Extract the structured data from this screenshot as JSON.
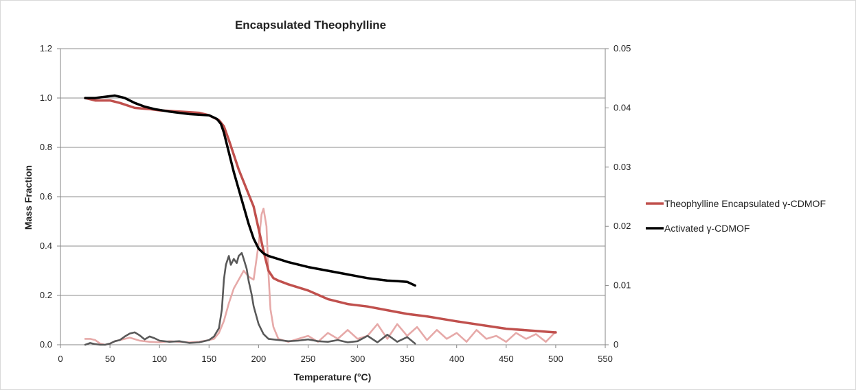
{
  "chart_data": {
    "type": "line",
    "title": "Encapsulated Theophylline",
    "xlabel": "Temperature (°C)",
    "ylabel": "Mass Fraction",
    "y2label": "",
    "xlim": [
      0,
      550
    ],
    "ylim": [
      0,
      1.2
    ],
    "y2lim": [
      0,
      0.05
    ],
    "x_ticks": [
      "0",
      "50",
      "100",
      "150",
      "200",
      "250",
      "300",
      "350",
      "400",
      "450",
      "500",
      "550"
    ],
    "y_ticks": [
      "0.0",
      "0.2",
      "0.4",
      "0.6",
      "0.8",
      "1.0",
      "1.2"
    ],
    "y2_ticks": [
      "0",
      "0.01",
      "0.02",
      "0.03",
      "0.04",
      "0.05"
    ],
    "grid": "horizontal",
    "legend_position": "right",
    "series": [
      {
        "name": "Theophylline Encapsulated γ-CDMOF",
        "axis": "left",
        "color": "#c0504d",
        "x": [
          25,
          35,
          50,
          60,
          75,
          90,
          100,
          120,
          140,
          150,
          160,
          165,
          170,
          175,
          180,
          185,
          190,
          195,
          200,
          205,
          210,
          215,
          220,
          230,
          250,
          270,
          290,
          310,
          330,
          350,
          370,
          400,
          450,
          500
        ],
        "y": [
          1.0,
          0.99,
          0.99,
          0.98,
          0.96,
          0.955,
          0.95,
          0.945,
          0.94,
          0.93,
          0.91,
          0.885,
          0.83,
          0.77,
          0.71,
          0.66,
          0.61,
          0.56,
          0.47,
          0.38,
          0.3,
          0.27,
          0.26,
          0.245,
          0.22,
          0.185,
          0.165,
          0.155,
          0.14,
          0.125,
          0.115,
          0.095,
          0.065,
          0.05
        ]
      },
      {
        "name": "Activated γ-CDMOF",
        "axis": "left",
        "color": "#000000",
        "x": [
          25,
          35,
          45,
          55,
          65,
          75,
          85,
          95,
          110,
          130,
          150,
          158,
          162,
          165,
          170,
          175,
          180,
          185,
          190,
          195,
          200,
          205,
          210,
          230,
          250,
          270,
          290,
          310,
          330,
          340,
          350,
          358
        ],
        "y": [
          1.0,
          1.0,
          1.005,
          1.01,
          1.0,
          0.98,
          0.965,
          0.955,
          0.945,
          0.935,
          0.93,
          0.915,
          0.895,
          0.86,
          0.78,
          0.7,
          0.63,
          0.56,
          0.49,
          0.43,
          0.39,
          0.37,
          0.36,
          0.335,
          0.315,
          0.3,
          0.285,
          0.27,
          0.26,
          0.258,
          0.255,
          0.24
        ]
      },
      {
        "name": "",
        "axis": "right",
        "color": "#e6a9a8",
        "x": [
          25,
          30,
          35,
          40,
          45,
          50,
          55,
          60,
          70,
          80,
          90,
          100,
          110,
          120,
          130,
          140,
          150,
          155,
          160,
          165,
          170,
          175,
          180,
          185,
          190,
          195,
          200,
          203,
          205,
          208,
          210,
          212,
          215,
          220,
          230,
          240,
          250,
          260,
          270,
          280,
          290,
          300,
          310,
          320,
          330,
          340,
          350,
          360,
          370,
          380,
          390,
          400,
          410,
          420,
          430,
          440,
          450,
          460,
          470,
          480,
          490,
          500
        ],
        "y": [
          0.001,
          0.001,
          0.0008,
          0.0002,
          0.0,
          0.0002,
          0.0006,
          0.0008,
          0.0012,
          0.0007,
          0.0005,
          0.0004,
          0.0006,
          0.0005,
          0.0004,
          0.0005,
          0.0008,
          0.001,
          0.002,
          0.004,
          0.007,
          0.0095,
          0.011,
          0.0125,
          0.0115,
          0.011,
          0.017,
          0.022,
          0.023,
          0.02,
          0.012,
          0.006,
          0.003,
          0.001,
          0.0005,
          0.001,
          0.0015,
          0.0005,
          0.002,
          0.001,
          0.0025,
          0.001,
          0.0015,
          0.0035,
          0.001,
          0.0035,
          0.0015,
          0.003,
          0.0008,
          0.0025,
          0.001,
          0.002,
          0.0005,
          0.0025,
          0.001,
          0.0015,
          0.0005,
          0.002,
          0.001,
          0.0018,
          0.0005,
          0.0022
        ]
      },
      {
        "name": "",
        "axis": "right",
        "color": "#595959",
        "x": [
          25,
          30,
          35,
          40,
          45,
          50,
          55,
          60,
          65,
          70,
          75,
          80,
          85,
          90,
          95,
          100,
          110,
          120,
          130,
          140,
          150,
          155,
          160,
          163,
          165,
          167,
          170,
          172,
          175,
          178,
          180,
          183,
          185,
          188,
          190,
          193,
          195,
          200,
          205,
          210,
          220,
          230,
          240,
          250,
          260,
          270,
          280,
          290,
          300,
          310,
          320,
          330,
          340,
          350,
          358
        ],
        "y": [
          0.0,
          0.0003,
          0.0001,
          0.0,
          0.0,
          0.0002,
          0.0006,
          0.0008,
          0.0014,
          0.0019,
          0.0021,
          0.0016,
          0.0009,
          0.0014,
          0.0011,
          0.0007,
          0.0005,
          0.0006,
          0.0003,
          0.0004,
          0.0008,
          0.0014,
          0.0028,
          0.006,
          0.011,
          0.0135,
          0.015,
          0.0135,
          0.0145,
          0.0138,
          0.015,
          0.0155,
          0.0145,
          0.0128,
          0.0108,
          0.0085,
          0.0065,
          0.0035,
          0.0018,
          0.001,
          0.0008,
          0.0006,
          0.0007,
          0.0009,
          0.0006,
          0.0005,
          0.0008,
          0.0004,
          0.0006,
          0.0015,
          0.0004,
          0.0017,
          0.0005,
          0.0013,
          0.0002
        ]
      }
    ]
  }
}
